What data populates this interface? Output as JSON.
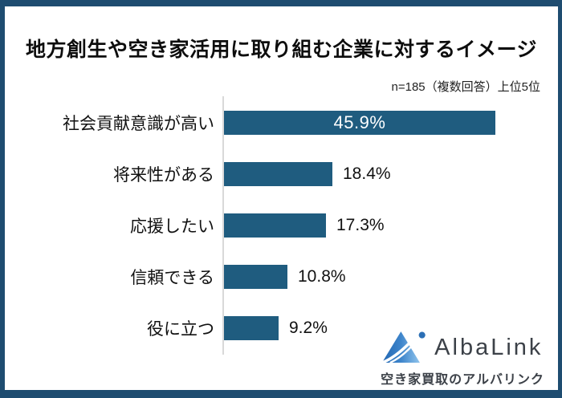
{
  "header": {
    "title": "地方創生や空き家活用に取り組む企業に対するイメージ",
    "note": "n=185（複数回答）上位5位"
  },
  "chart_data": {
    "type": "bar",
    "orientation": "horizontal",
    "title": "地方創生や空き家活用に取り組む企業に対するイメージ",
    "note": "n=185（複数回答）上位5位",
    "categories": [
      "社会貢献意識が高い",
      "将来性がある",
      "応援したい",
      "信頼できる",
      "役に立つ"
    ],
    "values": [
      45.9,
      18.4,
      17.3,
      10.8,
      9.2
    ],
    "value_labels": [
      "45.9%",
      "18.4%",
      "17.3%",
      "10.8%",
      "9.2%"
    ],
    "label_position": [
      "inside",
      "outside",
      "outside",
      "outside",
      "outside"
    ],
    "unit": "%",
    "xlim": [
      0,
      50
    ],
    "grid": false,
    "legend": false,
    "bar_color": "#1F5C7F",
    "axis_color": "#D9D9D9"
  },
  "footer": {
    "logo_text": "AlbaLink",
    "tagline": "空き家買取のアルバリンク",
    "logo_colors": {
      "triangle_gradient_start": "#2166B2",
      "triangle_gradient_mid": "#3E85CB",
      "triangle_gradient_end": "#90C4EC",
      "dot": "#2B6FB5",
      "text": "#3C4148"
    }
  },
  "frame": {
    "border_color": "#1E4C70",
    "background": "#FFFFFF"
  }
}
